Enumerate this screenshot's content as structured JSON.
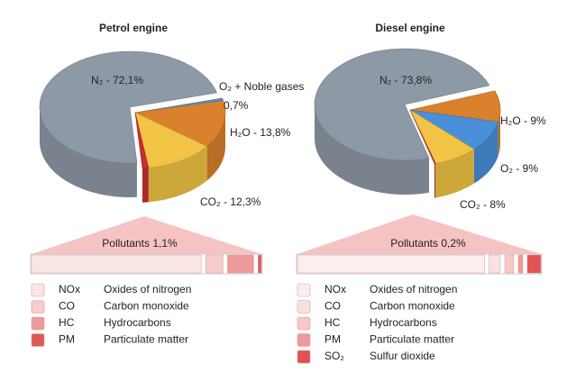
{
  "chart_data": [
    {
      "type": "pie",
      "title": "Petrol engine",
      "values": [
        0.7,
        13.8,
        12.3,
        1.1,
        72.1
      ],
      "value_labels": [
        [
          "O₂ + Noble gases",
          "0,7%"
        ],
        "H₂O - 13,8%",
        "CO₂ - 12,3%",
        "Pollutants 1,1%",
        "N₂ - 72,1%"
      ],
      "colors": [
        "#4a8fd8",
        "#d9812c",
        "#f2c445",
        "#c7302c",
        "#8e99a6"
      ],
      "pollutants": [
        {
          "name": "NOx",
          "label": "Oxides of nitrogen",
          "color": "#fbe6e6",
          "value": 78
        },
        {
          "name": "CO",
          "label": "Carbon monoxide",
          "color": "#f6cccc",
          "value": 8
        },
        {
          "name": "HC",
          "label": "Hydrocarbons",
          "color": "#ee9a9a",
          "value": 12
        },
        {
          "name": "PM",
          "label": "Particulate matter",
          "color": "#de5a5a",
          "value": 1.5
        }
      ]
    },
    {
      "type": "pie",
      "title": "Diesel engine",
      "values": [
        9,
        9,
        8,
        0.2,
        73.8
      ],
      "value_labels": [
        "H₂O - 9%",
        "O₂ - 9%",
        "CO₂ - 8%",
        "Pollutants 0,2%",
        "N₂ - 73,8%"
      ],
      "colors": [
        "#d9812c",
        "#4a8fd8",
        "#f2c445",
        "#c7302c",
        "#8e99a6"
      ],
      "pollutants": [
        {
          "name": "NOx",
          "label": "Oxides of nitrogen",
          "color": "#fdeeee",
          "value": 83
        },
        {
          "name": "CO",
          "label": "Carbon monoxide",
          "color": "#fbe0e0",
          "value": 5
        },
        {
          "name": "HC",
          "label": "Hydrocarbons",
          "color": "#f6c8c8",
          "value": 4
        },
        {
          "name": "PM",
          "label": "Particulate matter",
          "color": "#ee9a9a",
          "value": 2
        },
        {
          "name": "SO₂",
          "label": "Sulfur dioxide",
          "color": "#e25252",
          "value": 6
        }
      ]
    }
  ]
}
